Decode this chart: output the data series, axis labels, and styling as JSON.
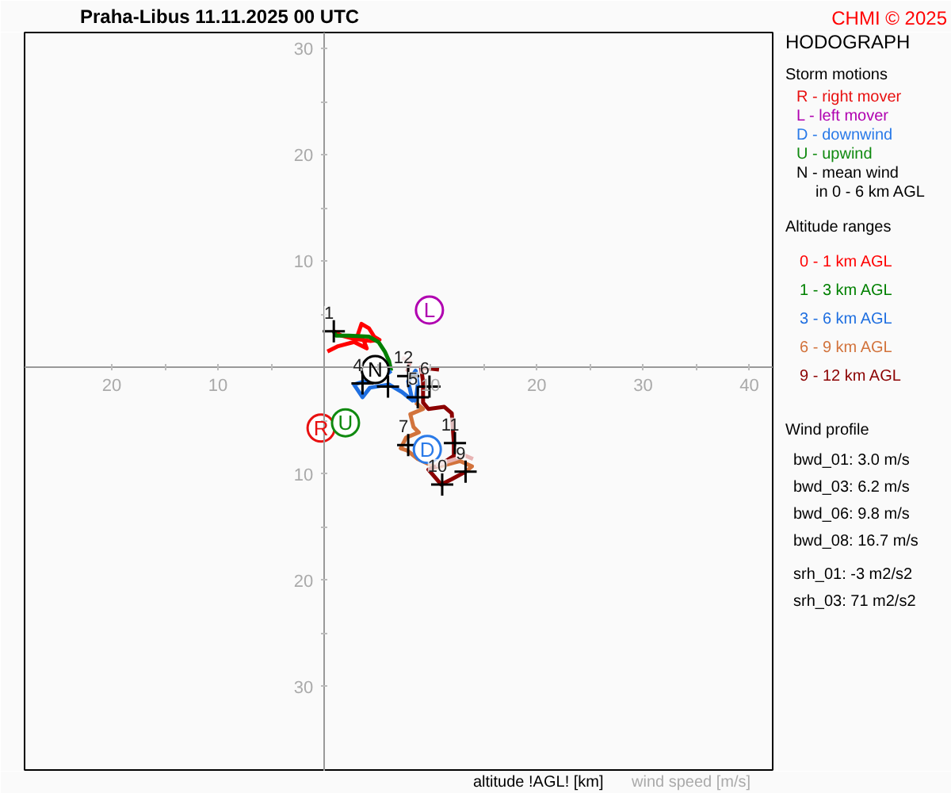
{
  "chart_data": {
    "type": "line",
    "title": "Praha-Libus    11.11.2025 00 UTC",
    "xlabel": "wind speed [m/s]",
    "xlim": [
      -28.2,
      42.2
    ],
    "ylim": [
      -38.0,
      31.5
    ],
    "xticks": [
      {
        "value": -20,
        "label": "20"
      },
      {
        "value": -15,
        "label": null
      },
      {
        "value": -10,
        "label": "10"
      },
      {
        "value": -5,
        "label": null
      },
      {
        "value": 5,
        "label": null
      },
      10,
      {
        "value": 15,
        "label": null
      },
      20,
      {
        "value": 25,
        "label": null
      },
      30,
      {
        "value": 35,
        "label": null
      },
      40
    ],
    "yticks": [
      {
        "value": -30,
        "label": "30"
      },
      {
        "value": -25,
        "label": null
      },
      {
        "value": -20,
        "label": "20"
      },
      {
        "value": -15,
        "label": null
      },
      {
        "value": -10,
        "label": "10"
      },
      {
        "value": -5,
        "label": null
      },
      {
        "value": 5,
        "label": null
      },
      10,
      {
        "value": 15,
        "label": null
      },
      20,
      {
        "value": 25,
        "label": null
      },
      30
    ],
    "line_style": "solid",
    "series": [
      {
        "name": "0 - 1 km AGL",
        "color": "#ff0000",
        "x": [
          0.3,
          1.3,
          2.8,
          4.0,
          3.7,
          3.1,
          3.5,
          4.2,
          4.7,
          5.2,
          4.3,
          2.8,
          1.6,
          0.9
        ],
        "values": [
          1.5,
          2.0,
          2.4,
          1.8,
          2.6,
          2.9,
          4.1,
          3.7,
          2.9,
          2.6,
          2.5,
          2.7,
          3.0,
          3.4
        ]
      },
      {
        "name": "1 - 3 km AGL",
        "color": "#008000",
        "x": [
          0.9,
          1.1,
          2.3,
          4.2,
          5.1,
          5.7,
          6.1,
          6.3
        ],
        "values": [
          3.4,
          3.0,
          3.0,
          2.9,
          2.4,
          1.5,
          0.6,
          -0.3
        ]
      },
      {
        "name": "3 - 6 km AGL",
        "color": "#1f6fe0",
        "x": [
          6.3,
          5.3,
          3.8,
          2.8,
          3.6,
          4.3,
          6.1,
          7.3,
          8.3,
          7.9,
          8.6,
          8.8,
          8.6
        ],
        "values": [
          -0.3,
          -1.1,
          -1.3,
          -1.6,
          -2.8,
          -1.9,
          -1.6,
          -2.3,
          -3.1,
          -1.3,
          -0.3,
          -1.6,
          -3.3
        ]
      },
      {
        "name": "6 - 9 km AGL",
        "color": "#d2733c",
        "x": [
          8.6,
          9.3,
          8.1,
          8.4,
          8.9,
          7.7,
          7.2,
          7.8,
          8.8,
          10.5,
          12.8,
          13.9,
          13.3
        ],
        "values": [
          -3.3,
          -3.9,
          -4.4,
          -5.6,
          -6.1,
          -6.6,
          -7.6,
          -7.8,
          -8.6,
          -9.4,
          -8.8,
          -9.3,
          -9.8
        ]
      },
      {
        "name": "9 - 12 km AGL",
        "color": "#8b0000",
        "x": [
          13.3,
          12.0,
          11.0,
          9.8,
          11.0,
          12.2,
          12.2,
          12.0,
          11.3,
          9.8,
          9.3,
          9.3,
          9.1,
          10.8
        ],
        "values": [
          -9.8,
          -10.5,
          -11.0,
          -9.6,
          -9.1,
          -8.3,
          -7.1,
          -4.3,
          -3.7,
          -3.9,
          -3.3,
          -1.3,
          0.0,
          -0.2
        ]
      },
      {
        "color": "#e8b4b4",
        "x": [
          7.3,
          8.1,
          7.8,
          null,
          14.0,
          13.3,
          10.5
        ],
        "values": [
          0.9,
          0.6,
          -0.4,
          null,
          -8.6,
          -8.3,
          -9.2
        ]
      },
      {
        "type": "scatter",
        "marker": "cross",
        "color": "#000000",
        "x": [
          0.9,
          6.0,
          3.6,
          8.8,
          9.9,
          7.9,
          13.3,
          11.1,
          12.3,
          7.9
        ],
        "values": [
          3.4,
          -1.8,
          -1.5,
          -2.8,
          -1.8,
          -7.3,
          -9.8,
          -11.0,
          -7.1,
          -0.8
        ]
      },
      {
        "type": "scatter",
        "marker": "circle",
        "name": "R - right mover",
        "color": "#e81010",
        "x": [
          -0.3
        ],
        "values": [
          -5.7
        ],
        "value_labels": [
          "R"
        ]
      },
      {
        "type": "scatter",
        "marker": "circle",
        "name": "L - left mover",
        "color": "#b000b0",
        "x": [
          9.9
        ],
        "values": [
          5.4
        ],
        "value_labels": [
          "L"
        ]
      },
      {
        "type": "scatter",
        "marker": "circle",
        "name": "D - downwind",
        "color": "#2a7ae8",
        "x": [
          9.7
        ],
        "values": [
          -7.7
        ],
        "value_labels": [
          "D"
        ]
      },
      {
        "type": "scatter",
        "marker": "circle",
        "name": "U - upwind",
        "color": "#108a10",
        "x": [
          2.0
        ],
        "values": [
          -5.2
        ],
        "value_labels": [
          "U"
        ]
      },
      {
        "type": "scatter",
        "marker": "circle",
        "name": "N - mean wind\nin 0 - 6 km AGL",
        "color": "#000000",
        "x": [
          4.8
        ],
        "values": [
          -0.2
        ],
        "value_labels": [
          "N"
        ]
      }
    ],
    "annotations": [
      "HODOGRAPH",
      "Storm motions",
      "Altitude ranges",
      "Wind profile",
      "bwd_01: 3.0 m/s",
      "bwd_03: 6.2 m/s",
      "bwd_06: 9.8 m/s",
      "bwd_08: 16.7 m/s",
      "srh_01: -3 m2/s2",
      "srh_03: 71 m2/s2",
      "CHMI © 2025",
      "altitude !AGL! [km]",
      {
        "text": "1",
        "x": 0.9,
        "y": 3.4
      },
      {
        "text": "4",
        "x": 3.6,
        "y": -1.5
      },
      {
        "text": "5",
        "x": 8.8,
        "y": -2.8
      },
      {
        "text": "6",
        "x": 9.9,
        "y": -1.8
      },
      {
        "text": "7",
        "x": 7.9,
        "y": -7.3
      },
      {
        "text": "9",
        "x": 13.3,
        "y": -9.8
      },
      {
        "text": "10",
        "x": 11.1,
        "y": -11.0
      },
      {
        "text": "11",
        "x": 12.3,
        "y": -7.1
      },
      {
        "text": "12",
        "x": 7.9,
        "y": -0.8
      }
    ]
  }
}
